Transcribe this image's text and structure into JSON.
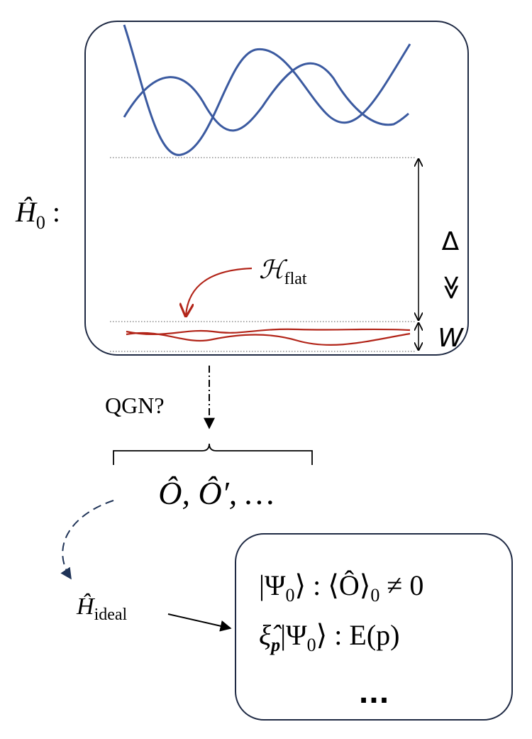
{
  "hamiltonian": {
    "symbol": "Ĥ",
    "subscript": "0",
    "suffix": " :"
  },
  "gap": {
    "label": "Δ",
    "relation": "≫",
    "width_label": "W"
  },
  "flat_band": {
    "symbol": "ℋ",
    "subscript": "flat"
  },
  "qgn": {
    "label": "QGN?"
  },
  "operators": {
    "label": "Ô,  Ô′,  …"
  },
  "ideal": {
    "symbol": "Ĥ",
    "subscript": "ideal"
  },
  "result_box": {
    "lines": [
      {
        "text": "|Ψ",
        "subscript": "0",
        "rest": "⟩ : ⟨Ô⟩",
        "subscript2": "0",
        "tail": " ≠ 0"
      },
      {
        "text": "ξ̂",
        "subscript": "p",
        "rest": "|Ψ",
        "subscript2": "0",
        "tail": "⟩ : E(p)"
      },
      {
        "text": "..."
      }
    ]
  }
}
